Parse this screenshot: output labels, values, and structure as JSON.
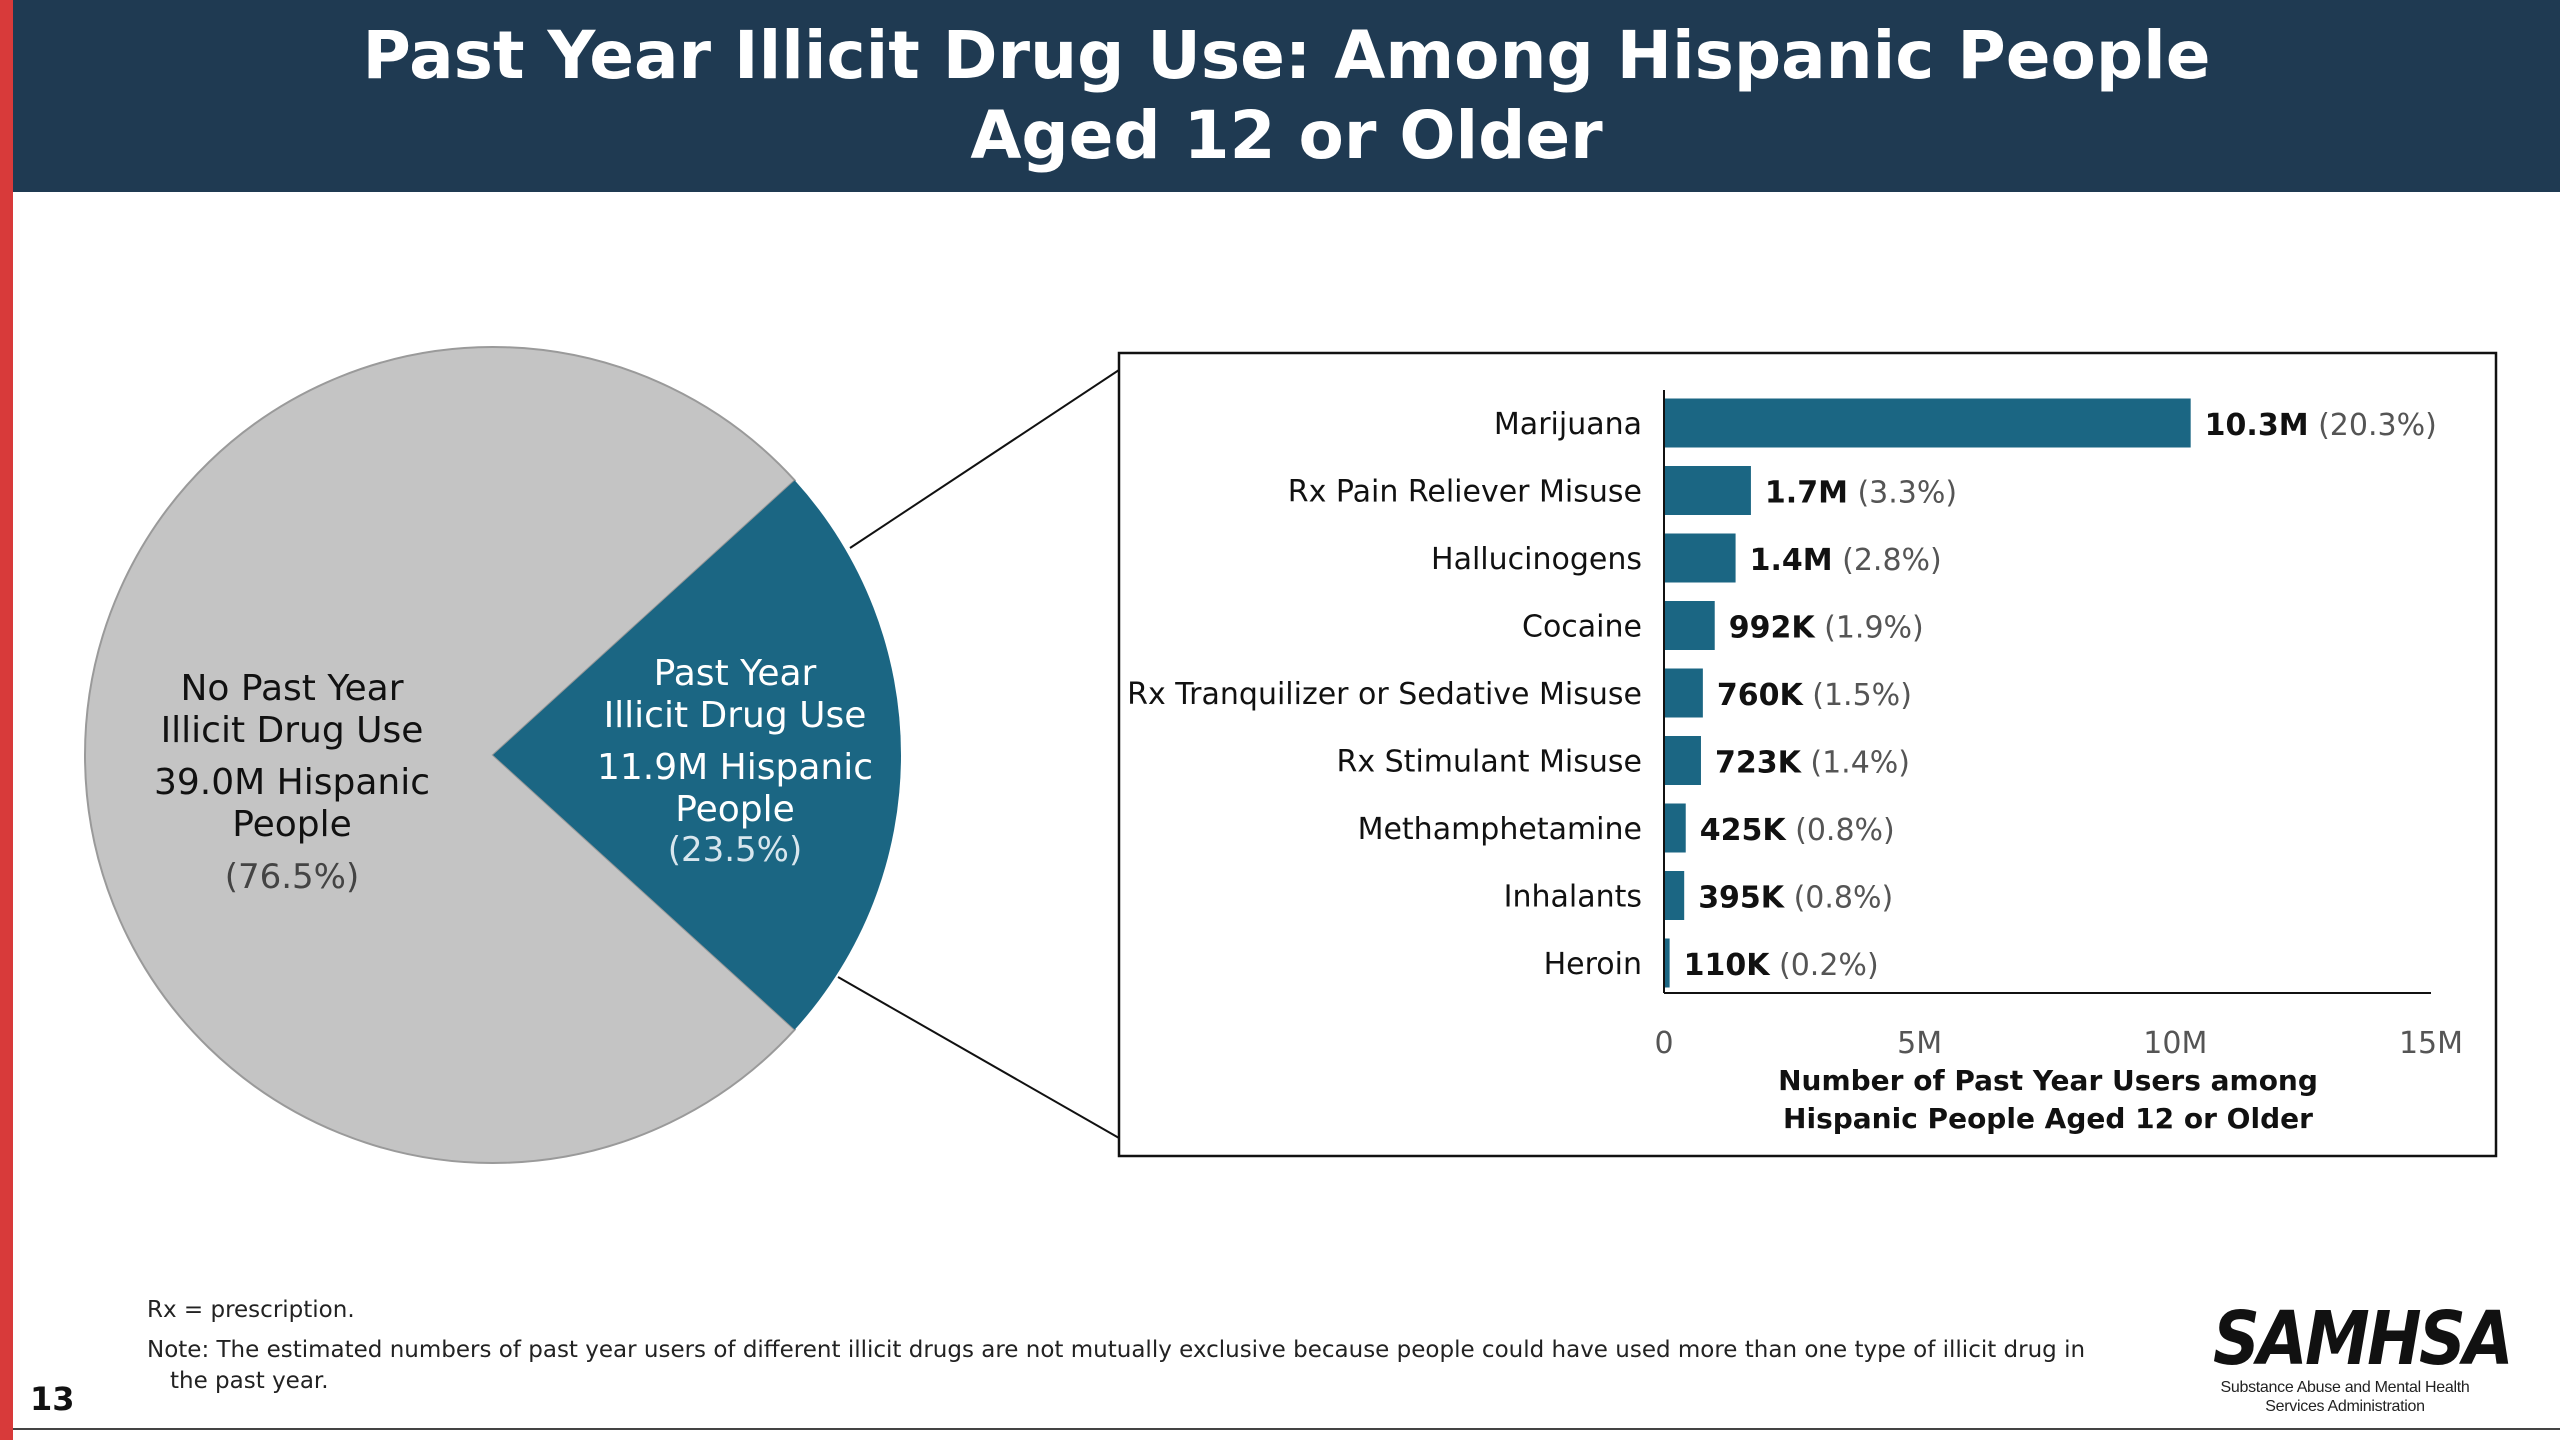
{
  "header": {
    "title_line1": "Past Year Illicit Drug Use: Among Hispanic People",
    "title_line2": "Aged 12 or Older"
  },
  "colors": {
    "header_bg": "#1f3a52",
    "accent_red": "#d83a3a",
    "bar_teal": "#1b6683",
    "pie_gray": "#c4c4c4"
  },
  "chart_data": [
    {
      "type": "pie",
      "slices": [
        {
          "label_line1": "No Past Year",
          "label_line2": "Illicit Drug Use",
          "value_text_line1": "39.0M Hispanic",
          "value_text_line2": "People",
          "percent_text": "(76.5%)",
          "value": 39.0,
          "percent": 76.5,
          "color": "#c4c4c4"
        },
        {
          "label_line1": "Past Year",
          "label_line2": "Illicit Drug Use",
          "value_text_line1": "11.9M Hispanic",
          "value_text_line2": "People",
          "percent_text": "(23.5%)",
          "value": 11.9,
          "percent": 23.5,
          "color": "#1b6683"
        }
      ]
    },
    {
      "type": "bar",
      "orientation": "horizontal",
      "categories": [
        "Marijuana",
        "Rx Pain Reliever Misuse",
        "Hallucinogens",
        "Cocaine",
        "Rx Tranquilizer or Sedative Misuse",
        "Rx Stimulant Misuse",
        "Methamphetamine",
        "Inhalants",
        "Heroin"
      ],
      "values": [
        10300000,
        1700000,
        1400000,
        992000,
        760000,
        723000,
        425000,
        395000,
        110000
      ],
      "value_labels": [
        "10.3M",
        "1.7M",
        "1.4M",
        "992K",
        "760K",
        "723K",
        "425K",
        "395K",
        "110K"
      ],
      "percent_labels": [
        "(20.3%)",
        "(3.3%)",
        "(2.8%)",
        "(1.9%)",
        "(1.5%)",
        "(1.4%)",
        "(0.8%)",
        "(0.8%)",
        "(0.2%)"
      ],
      "xlim": [
        0,
        15000000
      ],
      "ticks": [
        0,
        5000000,
        10000000,
        15000000
      ],
      "tick_labels": [
        "0",
        "5M",
        "10M",
        "15M"
      ],
      "xlabel_line1": "Number of Past Year Users among",
      "xlabel_line2": "Hispanic People Aged 12 or Older",
      "color": "#1b6683"
    }
  ],
  "footer": {
    "rx_note": "Rx = prescription.",
    "note_line1": "Note: The estimated numbers of past year users of different illicit drugs are not mutually exclusive because people could have used more than one type of illicit drug in",
    "note_line2": "the past year.",
    "slide_number": "13"
  },
  "logo": {
    "mark": "SAMHSA",
    "sub_line1": "Substance Abuse and Mental Health",
    "sub_line2": "Services Administration"
  }
}
